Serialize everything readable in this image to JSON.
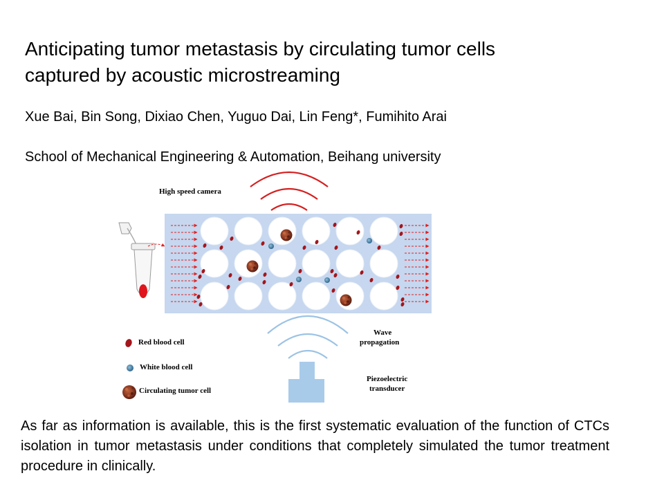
{
  "title": "Anticipating tumor metastasis by circulating tumor cells captured by acoustic microstreaming",
  "authors": "Xue Bai, Bin Song, Dixiao Chen, Yuguo Dai, Lin Feng*, Fumihito Arai",
  "affiliation": "School of Mechanical Engineering & Automation, Beihang university",
  "figure": {
    "camera_label": "High speed camera",
    "wave_label_line1": "Wave",
    "wave_label_line2": "propagation",
    "transducer_label_line1": "Piezoelectric",
    "transducer_label_line2": "transducer",
    "legend": {
      "rbc": "Red blood cell",
      "wbc": "White blood cell",
      "ctc": "Circulating tumor cell"
    },
    "colors": {
      "channel": "#c6d7ef",
      "rbc": "#a3161c",
      "wbc": "#4a84a8",
      "ctc": "#8c3a22",
      "flow_arrow": "#e02020",
      "camera_wave": "#d42020",
      "acoustic_wave": "#9cc3e4",
      "transducer": "#a9cbea"
    }
  },
  "summary": "As far as information is available, this is the first systematic evaluation of the function of CTCs isolation in tumor metastasis under conditions that completely simulated the tumor treatment procedure in clinically."
}
